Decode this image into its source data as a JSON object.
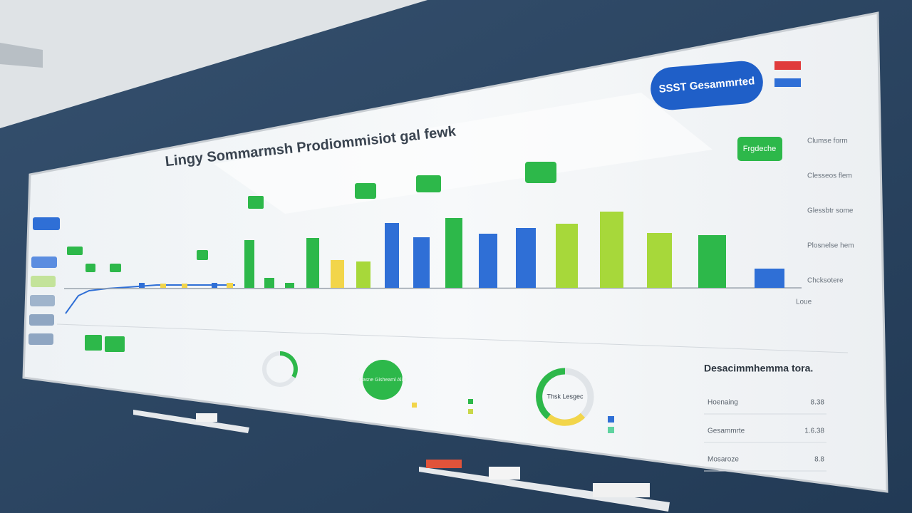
{
  "title": "Lingy Sommarmsh Prodiommisiot gal fewk",
  "header_badge": "SSST Gesammrted",
  "top_badge": "Frgdeche",
  "side_labels": [
    "Clumse form",
    "Clesseos flem",
    "Glessbtr some",
    "Plosnelse hem",
    "Chcksotere"
  ],
  "axis_label": "Loue",
  "bubble_text": "Gasne Gisheaml Alilo",
  "donut_text": "Thsk Lesgec",
  "summary": {
    "title": "Desacimmhemma tora.",
    "rows": [
      {
        "label": "Hoenaing",
        "value": "8.38"
      },
      {
        "label": "Gesammrte",
        "value": "1.6.38"
      },
      {
        "label": "Mosaroze",
        "value": "8.8"
      }
    ]
  }
}
